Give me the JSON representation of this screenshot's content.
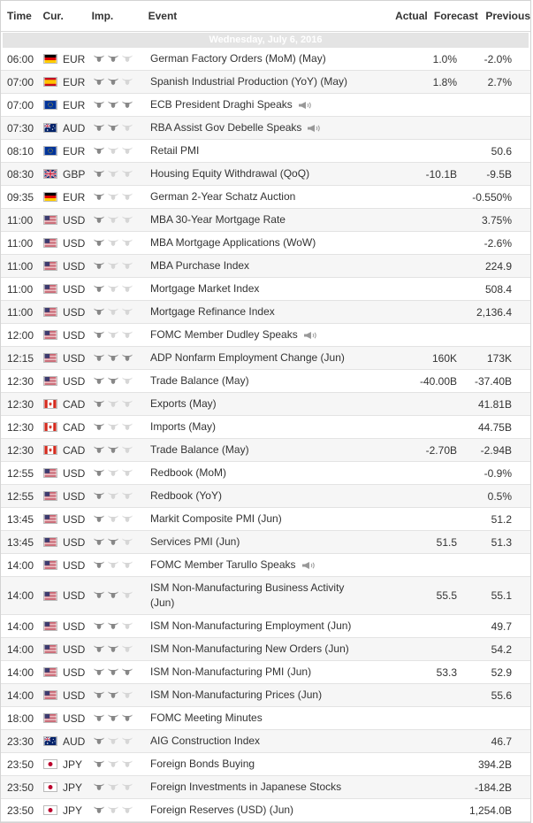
{
  "headers": {
    "time": "Time",
    "currency": "Cur.",
    "importance": "Imp.",
    "event": "Event",
    "actual": "Actual",
    "forecast": "Forecast",
    "previous": "Previous"
  },
  "date_label": "Wednesday, July 6, 2016",
  "colors": {
    "bull_on": "#888888",
    "bull_off": "#d6d6d6",
    "alt_row": "#f6f6f6",
    "date_bar": "#e4e4e4"
  },
  "rows": [
    {
      "time": "06:00",
      "flag": "de",
      "cur": "EUR",
      "imp": 2,
      "event": "German Factory Orders (MoM) (May)",
      "actual": "",
      "forecast": "1.0%",
      "previous": "-2.0%"
    },
    {
      "time": "07:00",
      "flag": "es",
      "cur": "EUR",
      "imp": 2,
      "event": "Spanish Industrial Production (YoY) (May)",
      "actual": "",
      "forecast": "1.8%",
      "previous": "2.7%"
    },
    {
      "time": "07:00",
      "flag": "eu",
      "cur": "EUR",
      "imp": 3,
      "event": "ECB President Draghi Speaks",
      "speech": true,
      "actual": "",
      "forecast": "",
      "previous": ""
    },
    {
      "time": "07:30",
      "flag": "au",
      "cur": "AUD",
      "imp": 2,
      "event": "RBA Assist Gov Debelle Speaks",
      "speech": true,
      "actual": "",
      "forecast": "",
      "previous": ""
    },
    {
      "time": "08:10",
      "flag": "eu",
      "cur": "EUR",
      "imp": 1,
      "event": "Retail PMI",
      "actual": "",
      "forecast": "",
      "previous": "50.6"
    },
    {
      "time": "08:30",
      "flag": "gb",
      "cur": "GBP",
      "imp": 1,
      "event": "Housing Equity Withdrawal (QoQ)",
      "actual": "",
      "forecast": "-10.1B",
      "previous": "-9.5B"
    },
    {
      "time": "09:35",
      "flag": "de",
      "cur": "EUR",
      "imp": 1,
      "event": "German 2-Year Schatz Auction",
      "actual": "",
      "forecast": "",
      "previous": "-0.550%"
    },
    {
      "time": "11:00",
      "flag": "us",
      "cur": "USD",
      "imp": 1,
      "event": "MBA 30-Year Mortgage Rate",
      "actual": "",
      "forecast": "",
      "previous": "3.75%"
    },
    {
      "time": "11:00",
      "flag": "us",
      "cur": "USD",
      "imp": 1,
      "event": "MBA Mortgage Applications (WoW)",
      "actual": "",
      "forecast": "",
      "previous": "-2.6%"
    },
    {
      "time": "11:00",
      "flag": "us",
      "cur": "USD",
      "imp": 1,
      "event": "MBA Purchase Index",
      "actual": "",
      "forecast": "",
      "previous": "224.9"
    },
    {
      "time": "11:00",
      "flag": "us",
      "cur": "USD",
      "imp": 1,
      "event": "Mortgage Market Index",
      "actual": "",
      "forecast": "",
      "previous": "508.4"
    },
    {
      "time": "11:00",
      "flag": "us",
      "cur": "USD",
      "imp": 1,
      "event": "Mortgage Refinance Index",
      "actual": "",
      "forecast": "",
      "previous": "2,136.4"
    },
    {
      "time": "12:00",
      "flag": "us",
      "cur": "USD",
      "imp": 1,
      "event": "FOMC Member Dudley Speaks",
      "speech": true,
      "actual": "",
      "forecast": "",
      "previous": ""
    },
    {
      "time": "12:15",
      "flag": "us",
      "cur": "USD",
      "imp": 3,
      "event": "ADP Nonfarm Employment Change (Jun)",
      "actual": "",
      "forecast": "160K",
      "previous": "173K"
    },
    {
      "time": "12:30",
      "flag": "us",
      "cur": "USD",
      "imp": 2,
      "event": "Trade Balance (May)",
      "actual": "",
      "forecast": "-40.00B",
      "previous": "-37.40B"
    },
    {
      "time": "12:30",
      "flag": "ca",
      "cur": "CAD",
      "imp": 1,
      "event": "Exports (May)",
      "actual": "",
      "forecast": "",
      "previous": "41.81B"
    },
    {
      "time": "12:30",
      "flag": "ca",
      "cur": "CAD",
      "imp": 1,
      "event": "Imports (May)",
      "actual": "",
      "forecast": "",
      "previous": "44.75B"
    },
    {
      "time": "12:30",
      "flag": "ca",
      "cur": "CAD",
      "imp": 2,
      "event": "Trade Balance (May)",
      "actual": "",
      "forecast": "-2.70B",
      "previous": "-2.94B"
    },
    {
      "time": "12:55",
      "flag": "us",
      "cur": "USD",
      "imp": 1,
      "event": "Redbook (MoM)",
      "actual": "",
      "forecast": "",
      "previous": "-0.9%"
    },
    {
      "time": "12:55",
      "flag": "us",
      "cur": "USD",
      "imp": 1,
      "event": "Redbook (YoY)",
      "actual": "",
      "forecast": "",
      "previous": "0.5%"
    },
    {
      "time": "13:45",
      "flag": "us",
      "cur": "USD",
      "imp": 1,
      "event": "Markit Composite PMI (Jun)",
      "actual": "",
      "forecast": "",
      "previous": "51.2"
    },
    {
      "time": "13:45",
      "flag": "us",
      "cur": "USD",
      "imp": 2,
      "event": "Services PMI (Jun)",
      "actual": "",
      "forecast": "51.5",
      "previous": "51.3"
    },
    {
      "time": "14:00",
      "flag": "us",
      "cur": "USD",
      "imp": 1,
      "event": "FOMC Member Tarullo Speaks",
      "speech": true,
      "actual": "",
      "forecast": "",
      "previous": ""
    },
    {
      "time": "14:00",
      "flag": "us",
      "cur": "USD",
      "imp": 2,
      "event": "ISM Non-Manufacturing Business Activity (Jun)",
      "tall": true,
      "actual": "",
      "forecast": "55.5",
      "previous": "55.1"
    },
    {
      "time": "14:00",
      "flag": "us",
      "cur": "USD",
      "imp": 2,
      "event": "ISM Non-Manufacturing Employment (Jun)",
      "actual": "",
      "forecast": "",
      "previous": "49.7"
    },
    {
      "time": "14:00",
      "flag": "us",
      "cur": "USD",
      "imp": 2,
      "event": "ISM Non-Manufacturing New Orders (Jun)",
      "actual": "",
      "forecast": "",
      "previous": "54.2"
    },
    {
      "time": "14:00",
      "flag": "us",
      "cur": "USD",
      "imp": 3,
      "event": "ISM Non-Manufacturing PMI (Jun)",
      "actual": "",
      "forecast": "53.3",
      "previous": "52.9"
    },
    {
      "time": "14:00",
      "flag": "us",
      "cur": "USD",
      "imp": 2,
      "event": "ISM Non-Manufacturing Prices (Jun)",
      "actual": "",
      "forecast": "",
      "previous": "55.6"
    },
    {
      "time": "18:00",
      "flag": "us",
      "cur": "USD",
      "imp": 3,
      "event": "FOMC Meeting Minutes",
      "actual": "",
      "forecast": "",
      "previous": ""
    },
    {
      "time": "23:30",
      "flag": "au",
      "cur": "AUD",
      "imp": 1,
      "event": "AIG Construction Index",
      "actual": "",
      "forecast": "",
      "previous": "46.7"
    },
    {
      "time": "23:50",
      "flag": "jp",
      "cur": "JPY",
      "imp": 1,
      "event": "Foreign Bonds Buying",
      "actual": "",
      "forecast": "",
      "previous": "394.2B"
    },
    {
      "time": "23:50",
      "flag": "jp",
      "cur": "JPY",
      "imp": 1,
      "event": "Foreign Investments in Japanese Stocks",
      "actual": "",
      "forecast": "",
      "previous": "-184.2B"
    },
    {
      "time": "23:50",
      "flag": "jp",
      "cur": "JPY",
      "imp": 1,
      "event": "Foreign Reserves (USD) (Jun)",
      "actual": "",
      "forecast": "",
      "previous": "1,254.0B"
    }
  ]
}
